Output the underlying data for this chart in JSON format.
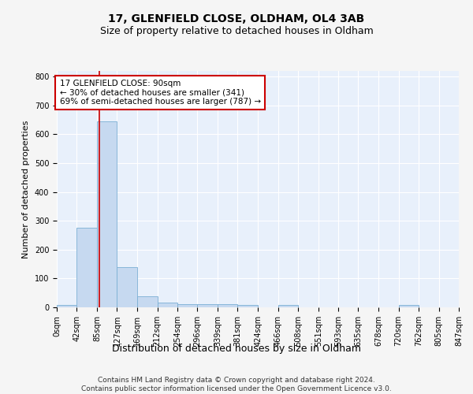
{
  "title1": "17, GLENFIELD CLOSE, OLDHAM, OL4 3AB",
  "title2": "Size of property relative to detached houses in Oldham",
  "xlabel": "Distribution of detached houses by size in Oldham",
  "ylabel": "Number of detached properties",
  "footer1": "Contains HM Land Registry data © Crown copyright and database right 2024.",
  "footer2": "Contains public sector information licensed under the Open Government Licence v3.0.",
  "bin_edges": [
    0,
    42,
    85,
    127,
    169,
    212,
    254,
    296,
    339,
    381,
    424,
    466,
    508,
    551,
    593,
    635,
    678,
    720,
    762,
    805,
    847
  ],
  "bar_heights": [
    8,
    277,
    644,
    139,
    37,
    17,
    12,
    11,
    12,
    8,
    0,
    8,
    0,
    0,
    0,
    0,
    0,
    7,
    0,
    0
  ],
  "bar_color": "#c6d9f0",
  "bar_edge_color": "#7bafd4",
  "property_size": 90,
  "red_line_color": "#cc0000",
  "annotation_line1": "17 GLENFIELD CLOSE: 90sqm",
  "annotation_line2": "← 30% of detached houses are smaller (341)",
  "annotation_line3": "69% of semi-detached houses are larger (787) →",
  "annotation_box_color": "#ffffff",
  "annotation_box_edge": "#cc0000",
  "ylim": [
    0,
    820
  ],
  "yticks": [
    0,
    100,
    200,
    300,
    400,
    500,
    600,
    700,
    800
  ],
  "bg_color": "#e8f0fb",
  "grid_color": "#ffffff",
  "fig_bg_color": "#f5f5f5",
  "title1_fontsize": 10,
  "title2_fontsize": 9,
  "tick_fontsize": 7,
  "ylabel_fontsize": 8,
  "xlabel_fontsize": 9,
  "footer_fontsize": 6.5,
  "annot_fontsize": 7.5
}
